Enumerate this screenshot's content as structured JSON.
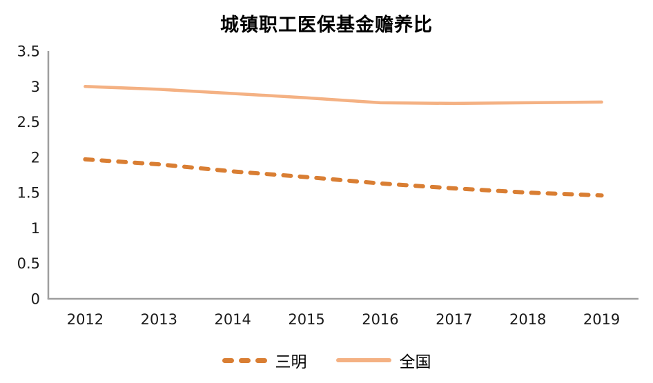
{
  "chart_data": {
    "type": "line",
    "title": "城镇职工医保基金赡养比",
    "categories": [
      "2012",
      "2013",
      "2014",
      "2015",
      "2016",
      "2017",
      "2018",
      "2019"
    ],
    "series": [
      {
        "name": "三明",
        "line_style": "dashed",
        "color": "#D97E33",
        "values": [
          1.97,
          1.9,
          1.8,
          1.72,
          1.63,
          1.56,
          1.5,
          1.46
        ]
      },
      {
        "name": "全国",
        "line_style": "solid",
        "color": "#F4B183",
        "values": [
          3.0,
          2.96,
          2.9,
          2.84,
          2.77,
          2.76,
          2.77,
          2.78
        ]
      }
    ],
    "ylim": [
      0,
      3.5
    ],
    "yticks": [
      0,
      0.5,
      1,
      1.5,
      2,
      2.5,
      3,
      3.5
    ],
    "ytick_labels": [
      "0",
      "0.5",
      "1",
      "1.5",
      "2",
      "2.5",
      "3",
      "3.5"
    ],
    "axis_color": "#9E9E9E",
    "text_color": "#1a1a1a",
    "grid": false,
    "legend_position": "bottom"
  }
}
